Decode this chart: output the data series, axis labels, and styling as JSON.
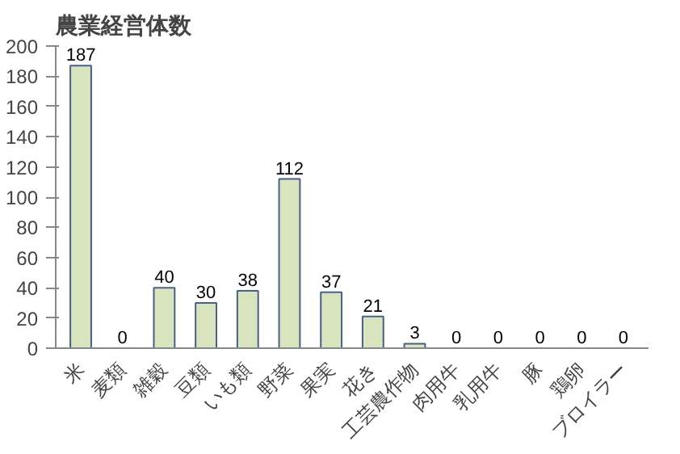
{
  "chart_data": {
    "type": "bar",
    "title": "農業経営体数",
    "categories": [
      "米",
      "麦類",
      "雑穀",
      "豆類",
      "いも類",
      "野菜",
      "果実",
      "花き",
      "工芸農作物",
      "肉用牛",
      "乳用牛",
      "豚",
      "鶏卵",
      "ブロイラー"
    ],
    "values": [
      187,
      0,
      40,
      30,
      38,
      112,
      37,
      21,
      3,
      0,
      0,
      0,
      0,
      0
    ],
    "color": "#d7e4bd",
    "ylim": [
      0,
      200
    ],
    "yticks": [
      0,
      20,
      40,
      60,
      80,
      100,
      120,
      140,
      160,
      180,
      200
    ],
    "grid": false,
    "data_labels": true
  }
}
